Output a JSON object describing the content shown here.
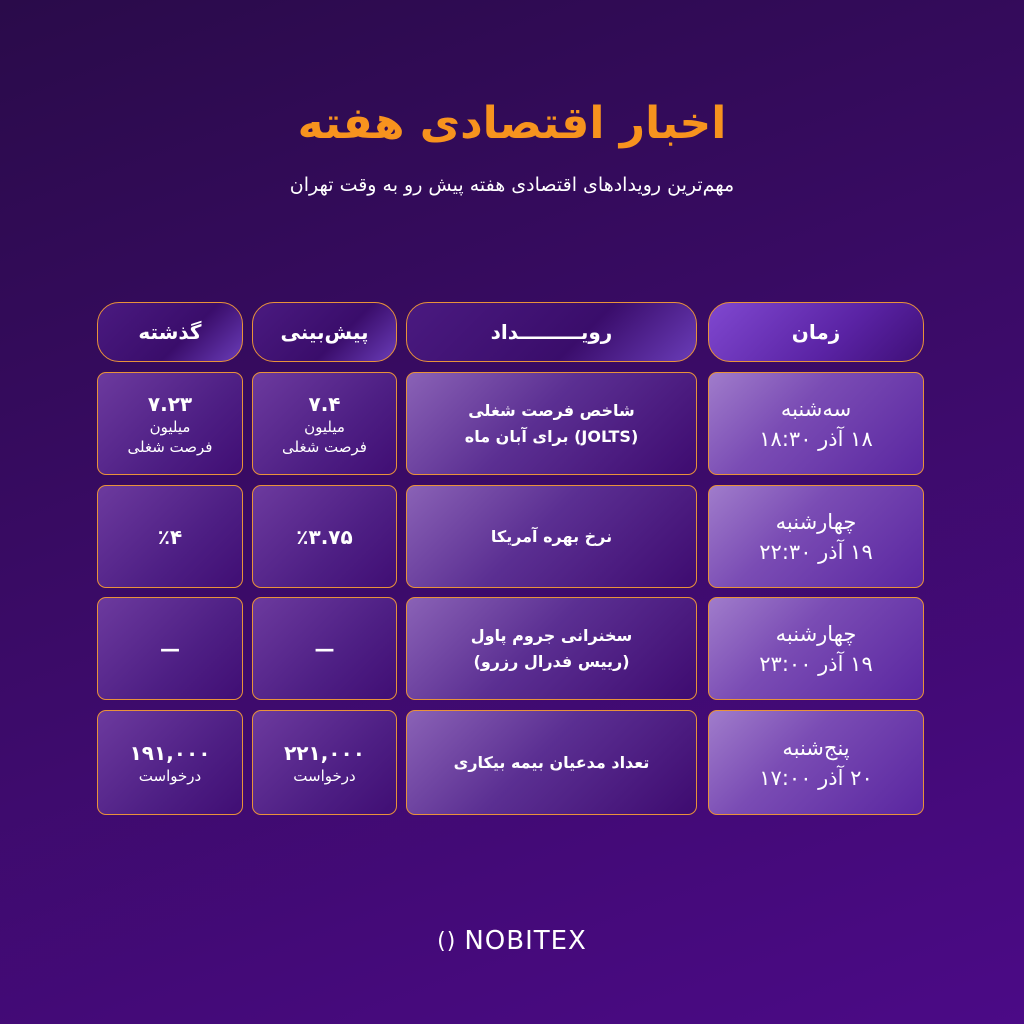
{
  "title": "اخبار اقتصادی هفته",
  "subtitle": "مهم‌ترین رویدادهای اقتصادی هفته پیش رو به وقت تهران",
  "headers": {
    "time": "زمان",
    "event": "رویـــــــــداد",
    "forecast": "پیش‌بینی",
    "previous": "گذشته"
  },
  "rows": [
    {
      "day": "سه‌شنبه",
      "date": "۱۸ آذر  ۱۸:۳۰",
      "event1": "شاخص فرصت شغلی",
      "event2": "(JOLTS) برای آبان ماه",
      "forecast": "۷.۴",
      "forecast_u1": "میلیون",
      "forecast_u2": "فرصت شغلی",
      "previous": "۷.۲۳",
      "previous_u1": "میلیون",
      "previous_u2": "فرصت شغلی"
    },
    {
      "day": "چهارشنبه",
      "date": "۱۹ آذر  ۲۲:۳۰",
      "event1": "نرخ بهره آمریکا",
      "event2": "",
      "forecast": "٪۳.۷۵",
      "previous": "٪۴"
    },
    {
      "day": "چهارشنبه",
      "date": "۱۹ آذر  ۲۳:۰۰",
      "event1": "سخنرانی جروم پاول",
      "event2": "(رییس فدرال رزرو)",
      "forecast": "—",
      "previous": "—"
    },
    {
      "day": "پنج‌شنبه",
      "date": "۲۰ آذر  ۱۷:۰۰",
      "event1": "تعداد مدعیان بیمه بیکاری",
      "event2": "",
      "forecast": "۲۲۱,۰۰۰",
      "forecast_u1": "درخواست",
      "previous": "۱۹۱,۰۰۰",
      "previous_u1": "درخواست"
    }
  ],
  "logo": {
    "text": "NOBITEX",
    "icon": "nobitex-logo-icon"
  },
  "colors": {
    "accent": "#f7931e",
    "border": "#e9923a",
    "background": "#3a0b66"
  }
}
